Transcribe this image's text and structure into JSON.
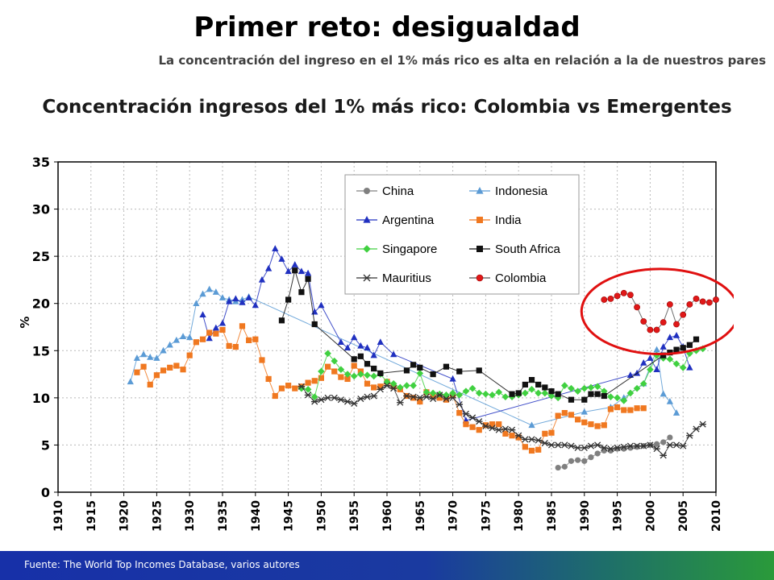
{
  "slide": {
    "title": "Primer reto: desigualdad",
    "subtitle": "La concentración del ingreso en el 1% más rico es alta en relación a la de nuestros pares",
    "chart_heading": "Concentración ingresos del 1% más rico:  Colombia vs Emergentes",
    "footer": "Fuente: The World Top Incomes Database, varios autores"
  },
  "chart_data": {
    "type": "line",
    "ylabel": "%",
    "xlabel": "",
    "xlim": [
      1910,
      2010
    ],
    "ylim": [
      0,
      35
    ],
    "x_ticks": [
      1910,
      1915,
      1920,
      1925,
      1930,
      1935,
      1940,
      1945,
      1950,
      1955,
      1960,
      1965,
      1970,
      1975,
      1980,
      1985,
      1990,
      1995,
      2000,
      2005,
      2010
    ],
    "y_ticks": [
      0,
      5,
      10,
      15,
      20,
      25,
      30,
      35
    ],
    "grid": true,
    "legend_position": "top-right",
    "highlight": {
      "series": "Colombia",
      "shape": "ellipse",
      "color": "#e01010"
    },
    "series": [
      {
        "name": "China",
        "color": "#808080",
        "marker": "circle",
        "x": [
          1986,
          1987,
          1988,
          1989,
          1990,
          1991,
          1992,
          1993,
          1994,
          1995,
          1996,
          1997,
          1998,
          1999,
          2000,
          2001,
          2002,
          2003
        ],
        "y": [
          2.6,
          2.7,
          3.3,
          3.4,
          3.3,
          3.7,
          4.1,
          4.4,
          4.4,
          4.6,
          4.6,
          4.7,
          4.8,
          4.9,
          5.0,
          5.1,
          5.3,
          5.8
        ]
      },
      {
        "name": "Indonesia",
        "color": "#5b9bd5",
        "marker": "triangle",
        "x": [
          1921,
          1922,
          1923,
          1924,
          1925,
          1926,
          1927,
          1928,
          1929,
          1930,
          1931,
          1932,
          1933,
          1934,
          1935,
          1936,
          1937,
          1938,
          1939,
          1982,
          1990,
          1994,
          1996,
          1999,
          2001,
          2002,
          2003,
          2004
        ],
        "y": [
          11.7,
          14.2,
          14.6,
          14.3,
          14.2,
          15.0,
          15.6,
          16.1,
          16.5,
          16.4,
          20.0,
          21.0,
          21.5,
          21.2,
          20.6,
          20.4,
          20.2,
          20.4,
          20.7,
          7.1,
          8.5,
          9.0,
          10.0,
          11.5,
          15.1,
          10.4,
          9.6,
          8.4
        ]
      },
      {
        "name": "Argentina",
        "color": "#2030c0",
        "marker": "triangle",
        "x": [
          1932,
          1933,
          1934,
          1935,
          1936,
          1937,
          1938,
          1939,
          1940,
          1941,
          1942,
          1943,
          1944,
          1945,
          1946,
          1947,
          1948,
          1949,
          1950,
          1953,
          1954,
          1955,
          1956,
          1957,
          1958,
          1959,
          1961,
          1970,
          1972,
          1997,
          1998,
          1999,
          2000,
          2001,
          2002,
          2003,
          2004,
          2005,
          2006
        ],
        "y": [
          18.8,
          16.3,
          17.4,
          17.9,
          20.2,
          20.5,
          20.1,
          20.6,
          19.8,
          22.5,
          23.7,
          25.8,
          24.7,
          23.4,
          24.1,
          23.4,
          23.2,
          19.1,
          19.8,
          15.9,
          15.3,
          16.4,
          15.5,
          15.3,
          14.5,
          15.9,
          14.6,
          12.0,
          7.6,
          12.4,
          12.6,
          13.7,
          14.2,
          13.0,
          15.4,
          16.4,
          16.6,
          15.4,
          13.2
        ]
      },
      {
        "name": "India",
        "color": "#f07820",
        "marker": "square",
        "x": [
          1922,
          1923,
          1924,
          1925,
          1926,
          1927,
          1928,
          1929,
          1930,
          1931,
          1932,
          1933,
          1934,
          1935,
          1936,
          1937,
          1938,
          1939,
          1940,
          1941,
          1942,
          1943,
          1944,
          1945,
          1946,
          1947,
          1948,
          1949,
          1950,
          1951,
          1952,
          1953,
          1954,
          1955,
          1956,
          1957,
          1958,
          1959,
          1960,
          1961,
          1962,
          1963,
          1964,
          1965,
          1966,
          1967,
          1968,
          1969,
          1970,
          1971,
          1972,
          1973,
          1974,
          1975,
          1976,
          1977,
          1978,
          1979,
          1980,
          1981,
          1982,
          1983,
          1984,
          1985,
          1986,
          1987,
          1988,
          1989,
          1990,
          1991,
          1992,
          1993,
          1994,
          1995,
          1996,
          1997,
          1998,
          1999
        ],
        "y": [
          12.7,
          13.3,
          11.4,
          12.4,
          12.9,
          13.2,
          13.4,
          13.0,
          14.5,
          15.9,
          16.2,
          16.9,
          16.8,
          17.2,
          15.5,
          15.4,
          17.6,
          16.1,
          16.2,
          14.0,
          12.0,
          10.2,
          11.0,
          11.3,
          11.0,
          11.2,
          11.6,
          11.8,
          12.1,
          13.3,
          12.8,
          12.2,
          12.0,
          13.4,
          12.8,
          11.5,
          11.1,
          11.2,
          11.7,
          11.2,
          10.9,
          10.2,
          10.0,
          9.6,
          10.6,
          10.2,
          10.0,
          9.8,
          10.3,
          8.4,
          7.2,
          6.9,
          6.6,
          7.1,
          7.2,
          7.2,
          6.2,
          6.0,
          5.8,
          4.8,
          4.4,
          4.5,
          6.2,
          6.3,
          8.1,
          8.4,
          8.2,
          7.7,
          7.4,
          7.2,
          7.0,
          7.1,
          8.8,
          9.0,
          8.7,
          8.7,
          8.9,
          8.9
        ]
      },
      {
        "name": "Singapore",
        "color": "#40d040",
        "marker": "diamond",
        "x": [
          1947,
          1948,
          1949,
          1950,
          1951,
          1952,
          1953,
          1954,
          1955,
          1956,
          1957,
          1958,
          1959,
          1960,
          1961,
          1962,
          1963,
          1964,
          1965,
          1966,
          1967,
          1968,
          1969,
          1970,
          1971,
          1972,
          1973,
          1974,
          1975,
          1976,
          1977,
          1978,
          1979,
          1980,
          1981,
          1982,
          1983,
          1984,
          1985,
          1986,
          1987,
          1988,
          1989,
          1990,
          1991,
          1992,
          1993,
          1994,
          1995,
          1996,
          1997,
          1998,
          1999,
          2000,
          2001,
          2002,
          2003,
          2004,
          2005,
          2006,
          2007,
          2008
        ],
        "y": [
          11.0,
          10.9,
          10.1,
          12.8,
          14.7,
          13.9,
          13.0,
          12.5,
          12.3,
          12.5,
          12.4,
          12.3,
          12.5,
          11.7,
          11.5,
          11.1,
          11.3,
          11.3,
          12.6,
          10.6,
          10.5,
          10.4,
          10.3,
          10.5,
          10.3,
          10.7,
          11.0,
          10.5,
          10.4,
          10.3,
          10.6,
          10.1,
          10.1,
          10.3,
          10.5,
          10.9,
          10.5,
          10.5,
          10.2,
          10.0,
          11.3,
          11.0,
          10.7,
          11.0,
          11.1,
          11.2,
          10.7,
          10.1,
          10.0,
          9.7,
          10.5,
          11.0,
          11.5,
          13.0,
          14.5,
          14.2,
          14.1,
          13.6,
          13.2,
          14.7,
          15.0,
          15.2
        ]
      },
      {
        "name": "South Africa",
        "color": "#111111",
        "marker": "square",
        "x": [
          1944,
          1945,
          1946,
          1947,
          1948,
          1949,
          1955,
          1956,
          1957,
          1958,
          1959,
          1963,
          1964,
          1965,
          1967,
          1969,
          1971,
          1974,
          1979,
          1980,
          1981,
          1982,
          1983,
          1984,
          1985,
          1986,
          1988,
          1990,
          1991,
          1992,
          1993,
          2002,
          2003,
          2004,
          2005,
          2006,
          2007
        ],
        "y": [
          18.2,
          20.4,
          23.5,
          21.2,
          22.6,
          17.8,
          14.1,
          14.4,
          13.6,
          13.1,
          12.6,
          12.9,
          13.5,
          13.2,
          12.5,
          13.3,
          12.8,
          12.9,
          10.4,
          10.5,
          11.4,
          11.9,
          11.4,
          11.1,
          10.7,
          10.4,
          9.8,
          9.8,
          10.4,
          10.4,
          10.2,
          14.5,
          14.8,
          15.1,
          15.3,
          15.6,
          16.2
        ]
      },
      {
        "name": "Mauritius",
        "color": "#333333",
        "marker": "x",
        "x": [
          1947,
          1948,
          1949,
          1950,
          1951,
          1952,
          1953,
          1954,
          1955,
          1956,
          1957,
          1958,
          1959,
          1960,
          1961,
          1962,
          1963,
          1964,
          1965,
          1966,
          1967,
          1968,
          1969,
          1970,
          1971,
          1972,
          1973,
          1974,
          1975,
          1976,
          1977,
          1978,
          1979,
          1980,
          1981,
          1982,
          1983,
          1984,
          1985,
          1986,
          1987,
          1988,
          1989,
          1990,
          1991,
          1992,
          1993,
          1994,
          1995,
          1996,
          1997,
          1998,
          1999,
          2000,
          2001,
          2002,
          2003,
          2004,
          2005,
          2006,
          2007,
          2008
        ],
        "y": [
          11.2,
          10.3,
          9.6,
          9.8,
          10.0,
          10.0,
          9.8,
          9.6,
          9.4,
          9.9,
          10.1,
          10.2,
          10.9,
          11.3,
          11.0,
          9.5,
          10.2,
          10.1,
          10.0,
          10.1,
          9.9,
          10.3,
          9.9,
          10.0,
          9.3,
          8.3,
          7.9,
          7.5,
          7.0,
          6.8,
          6.6,
          6.7,
          6.6,
          6.0,
          5.6,
          5.6,
          5.5,
          5.2,
          5.0,
          5.0,
          5.0,
          4.9,
          4.7,
          4.7,
          4.9,
          5.0,
          4.7,
          4.6,
          4.7,
          4.8,
          4.9,
          4.9,
          4.9,
          5.0,
          4.6,
          3.9,
          5.0,
          5.0,
          4.9,
          6.0,
          6.7,
          7.2
        ]
      },
      {
        "name": "Colombia",
        "color": "#e01818",
        "marker": "circle",
        "x": [
          1993,
          1994,
          1995,
          1996,
          1997,
          1998,
          1999,
          2000,
          2001,
          2002,
          2003,
          2004,
          2005,
          2006,
          2007,
          2008,
          2009,
          2010
        ],
        "y": [
          20.4,
          20.5,
          20.8,
          21.1,
          20.9,
          19.6,
          18.1,
          17.2,
          17.2,
          18.0,
          19.9,
          17.8,
          18.8,
          19.9,
          20.5,
          20.2,
          20.1,
          20.4
        ]
      }
    ]
  }
}
